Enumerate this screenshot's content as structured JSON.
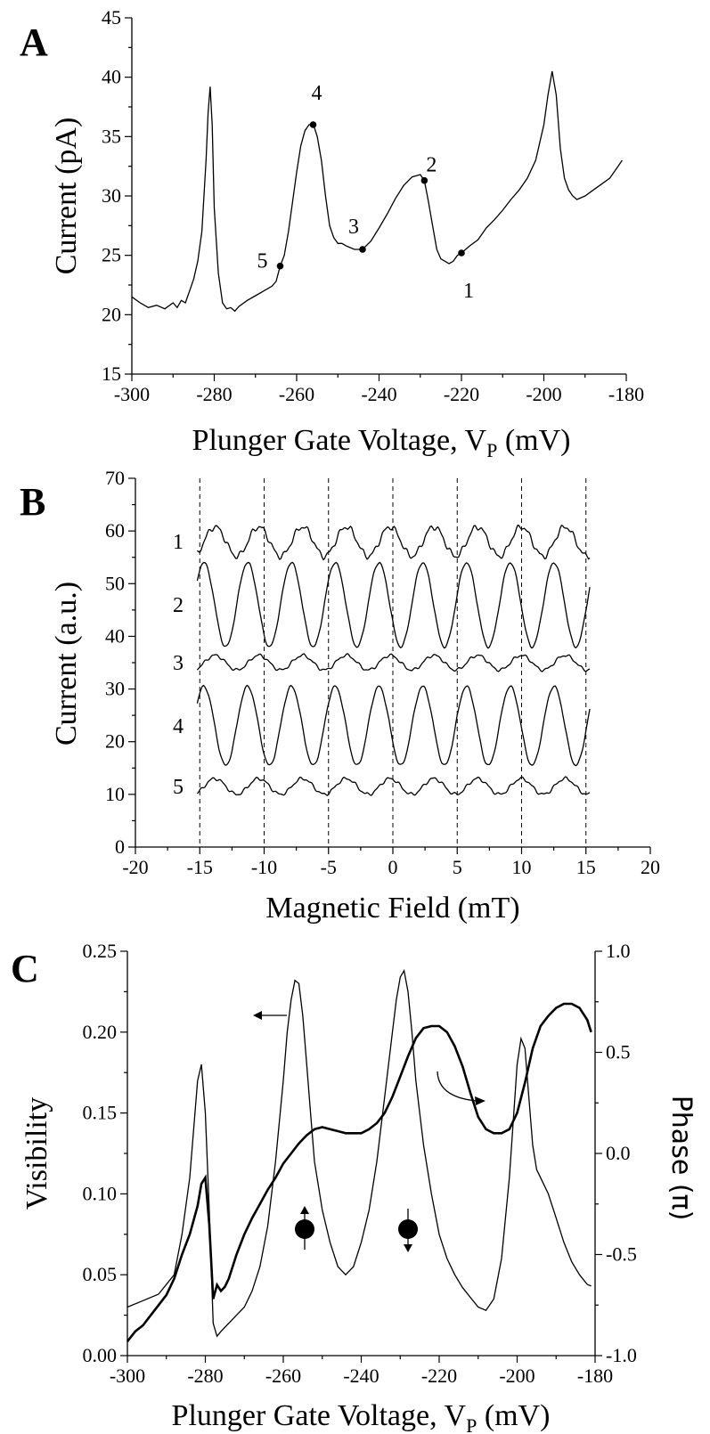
{
  "chart_data": [
    {
      "panel": "A",
      "type": "line",
      "xlabel": "Plunger Gate Voltage, V",
      "xlabel_sub": "P",
      "xlabel_unit": " (mV)",
      "ylabel": "Current (pA)",
      "xlim": [
        -300,
        -180
      ],
      "ylim": [
        15,
        45
      ],
      "xticks": [
        -300,
        -280,
        -260,
        -240,
        -220,
        -200,
        -180
      ],
      "yticks": [
        15,
        20,
        25,
        30,
        35,
        40,
        45
      ],
      "series": [
        {
          "x": [
            -300,
            -298,
            -296,
            -294,
            -292,
            -290,
            -289,
            -288,
            -287,
            -286,
            -285,
            -284,
            -283,
            -282,
            -281.5,
            -281,
            -280.5,
            -280,
            -279,
            -278,
            -277,
            -276,
            -275,
            -274,
            -272,
            -270,
            -268,
            -266,
            -265,
            -264,
            -263,
            -262,
            -261,
            -260,
            -259,
            -258,
            -257,
            -256,
            -255,
            -254,
            -253,
            -252,
            -251,
            -250,
            -249,
            -248,
            -246,
            -244,
            -242,
            -240,
            -238,
            -236,
            -234,
            -232,
            -230,
            -229,
            -228,
            -227,
            -226,
            -225,
            -224,
            -223,
            -222,
            -221,
            -220,
            -218,
            -216,
            -214,
            -212,
            -210,
            -208,
            -206,
            -204,
            -202,
            -200,
            -199,
            -198,
            -197,
            -196,
            -195,
            -194,
            -193,
            -192,
            -190,
            -188,
            -186,
            -184,
            -182,
            -181
          ],
          "y": [
            21.5,
            21.0,
            20.6,
            20.8,
            20.5,
            21.0,
            20.6,
            21.2,
            21.0,
            22.0,
            23.0,
            24.5,
            27.0,
            33.0,
            37.0,
            39.2,
            36.0,
            29.0,
            23.5,
            21.0,
            20.5,
            20.6,
            20.3,
            20.7,
            21.2,
            21.6,
            22.0,
            22.4,
            22.8,
            24.1,
            25.0,
            27.0,
            29.5,
            32.0,
            34.2,
            35.5,
            36.0,
            36.1,
            35.0,
            33.0,
            30.0,
            27.5,
            26.5,
            26.0,
            26.0,
            25.8,
            25.5,
            25.5,
            26.2,
            27.3,
            28.5,
            29.8,
            30.9,
            31.6,
            31.8,
            31.3,
            29.5,
            27.5,
            25.5,
            24.7,
            24.5,
            24.3,
            24.5,
            25.0,
            25.2,
            25.8,
            26.3,
            27.3,
            28.0,
            28.8,
            29.7,
            30.5,
            31.5,
            33.0,
            36.0,
            38.5,
            40.5,
            38.5,
            34.0,
            31.5,
            30.5,
            30.0,
            29.7,
            30.0,
            30.5,
            31.0,
            31.5,
            32.5,
            33.0
          ]
        }
      ],
      "annotations": [
        {
          "label": "1",
          "x": -220,
          "y": 25.2
        },
        {
          "label": "2",
          "x": -229,
          "y": 31.3
        },
        {
          "label": "3",
          "x": -244,
          "y": 25.5
        },
        {
          "label": "4",
          "x": -256,
          "y": 36.0
        },
        {
          "label": "5",
          "x": -264,
          "y": 24.1
        }
      ]
    },
    {
      "panel": "B",
      "type": "line",
      "xlabel": "Magnetic Field (mT)",
      "ylabel": "Current (a.u.)",
      "xlim": [
        -20,
        20
      ],
      "ylim": [
        0,
        70
      ],
      "xticks": [
        -20,
        -15,
        -10,
        -5,
        0,
        5,
        10,
        15,
        20
      ],
      "yticks": [
        0,
        10,
        20,
        30,
        40,
        50,
        60,
        70
      ],
      "vlines": [
        -15,
        -10,
        -5,
        0,
        5,
        10,
        15
      ],
      "period_mT": 3.4,
      "x_range": [
        -15.2,
        15.3
      ],
      "series": [
        {
          "name": "1",
          "offset": 58,
          "amplitude": 2.8
        },
        {
          "name": "2",
          "offset": 46,
          "amplitude": 8.0
        },
        {
          "name": "3",
          "offset": 35,
          "amplitude": 1.4
        },
        {
          "name": "4",
          "offset": 23,
          "amplitude": 7.5
        },
        {
          "name": "5",
          "offset": 11.5,
          "amplitude": 1.5
        }
      ]
    },
    {
      "panel": "C",
      "type": "line",
      "xlabel": "Plunger Gate Voltage, V",
      "xlabel_sub": "P",
      "xlabel_unit": " (mV)",
      "ylabel": "Visibility",
      "y2label": "Phase (π)",
      "xlim": [
        -300,
        -180
      ],
      "ylim": [
        0.0,
        0.25
      ],
      "y2lim": [
        -1.0,
        1.0
      ],
      "xticks": [
        -300,
        -280,
        -260,
        -240,
        -220,
        -200,
        -180
      ],
      "yticks": [
        "0.00",
        "0.05",
        "0.10",
        "0.15",
        "0.20",
        "0.25"
      ],
      "y2ticks": [
        "-1.0",
        "-0.5",
        "0.0",
        "0.5",
        "1.0"
      ],
      "series": [
        {
          "role": "visibility (left axis, thin)",
          "x": [
            -300,
            -296,
            -292,
            -288,
            -286,
            -284,
            -283,
            -282,
            -281,
            -280,
            -279,
            -278,
            -277,
            -276,
            -274,
            -272,
            -270,
            -268,
            -266,
            -264,
            -262,
            -260,
            -259,
            -258,
            -257,
            -256,
            -255,
            -254,
            -253,
            -252,
            -250,
            -248,
            -246,
            -244,
            -242,
            -240,
            -238,
            -236,
            -234,
            -232,
            -231,
            -230,
            -229,
            -228,
            -227,
            -226,
            -224,
            -222,
            -220,
            -218,
            -216,
            -214,
            -212,
            -210,
            -208,
            -206,
            -204,
            -202,
            -200,
            -199,
            -198,
            -197,
            -196,
            -195,
            -194,
            -192,
            -190,
            -188,
            -186,
            -184,
            -182,
            -181
          ],
          "y": [
            0.03,
            0.034,
            0.038,
            0.05,
            0.075,
            0.11,
            0.14,
            0.17,
            0.18,
            0.15,
            0.09,
            0.02,
            0.012,
            0.015,
            0.02,
            0.025,
            0.03,
            0.04,
            0.055,
            0.08,
            0.12,
            0.17,
            0.2,
            0.22,
            0.232,
            0.23,
            0.21,
            0.18,
            0.15,
            0.12,
            0.09,
            0.07,
            0.055,
            0.05,
            0.055,
            0.07,
            0.09,
            0.12,
            0.16,
            0.2,
            0.22,
            0.234,
            0.238,
            0.225,
            0.2,
            0.17,
            0.13,
            0.1,
            0.075,
            0.06,
            0.05,
            0.042,
            0.036,
            0.03,
            0.028,
            0.035,
            0.06,
            0.11,
            0.18,
            0.196,
            0.19,
            0.16,
            0.13,
            0.115,
            0.11,
            0.1,
            0.085,
            0.07,
            0.058,
            0.05,
            0.044,
            0.043
          ]
        },
        {
          "role": "phase (right axis, thick)",
          "x": [
            -300,
            -298,
            -296,
            -294,
            -292,
            -290,
            -288,
            -286,
            -284,
            -282,
            -281,
            -280,
            -279,
            -278,
            -277,
            -276,
            -275,
            -274,
            -272,
            -270,
            -268,
            -266,
            -264,
            -262,
            -260,
            -258,
            -256,
            -254,
            -252,
            -250,
            -248,
            -246,
            -244,
            -242,
            -240,
            -238,
            -236,
            -234,
            -232,
            -230,
            -228,
            -226,
            -224,
            -222,
            -220,
            -218,
            -216,
            -214,
            -212,
            -210,
            -208,
            -206,
            -204,
            -202,
            -200,
            -198,
            -196,
            -194,
            -192,
            -190,
            -188,
            -186,
            -184,
            -182,
            -181
          ],
          "y": [
            -0.93,
            -0.88,
            -0.85,
            -0.8,
            -0.75,
            -0.7,
            -0.62,
            -0.5,
            -0.4,
            -0.26,
            -0.15,
            -0.12,
            -0.35,
            -0.72,
            -0.65,
            -0.68,
            -0.66,
            -0.62,
            -0.5,
            -0.4,
            -0.32,
            -0.25,
            -0.18,
            -0.12,
            -0.05,
            0.0,
            0.05,
            0.09,
            0.12,
            0.13,
            0.12,
            0.11,
            0.1,
            0.1,
            0.1,
            0.12,
            0.15,
            0.2,
            0.28,
            0.38,
            0.48,
            0.57,
            0.62,
            0.63,
            0.63,
            0.6,
            0.53,
            0.43,
            0.3,
            0.18,
            0.12,
            0.1,
            0.1,
            0.12,
            0.2,
            0.35,
            0.52,
            0.63,
            0.68,
            0.72,
            0.74,
            0.74,
            0.72,
            0.66,
            0.6
          ]
        }
      ]
    }
  ]
}
